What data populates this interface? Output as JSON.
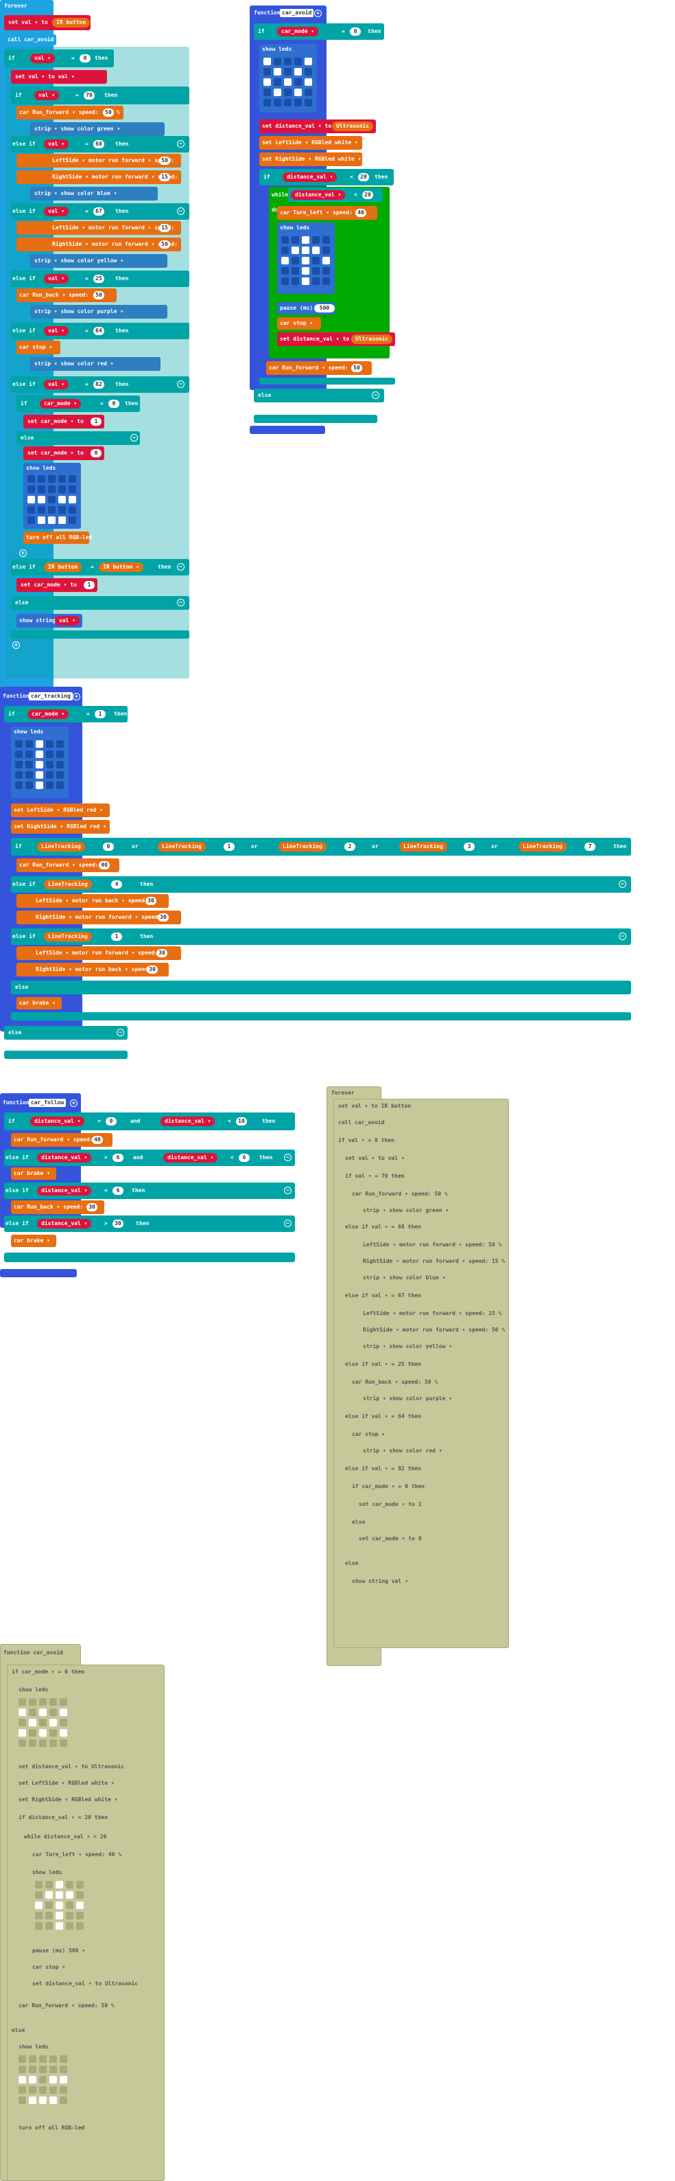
{
  "forever": {
    "label": "forever",
    "set_val": "set val ▾ to",
    "ir_button": "IR button",
    "call": "call car_avoid",
    "if": "if",
    "then": "then",
    "else_if": "else if",
    "else": "else",
    "val_label": "val ▾",
    "eq": "=",
    "zero": "0",
    "set_val2": "set val ▾ to val ▾",
    "n70": "70",
    "car_run": "car Run_forward ▾ speed:",
    "n50": "50",
    "pct": "%",
    "strip_green": "strip ▾ show color green ▾",
    "n68": "68",
    "left_fwd": "LeftSide ▾ motor run forward ▾ speed:",
    "n50b": "50",
    "right_fwd": "RightSide ▾ motor run forward ▾ speed:",
    "n15": "15",
    "strip_blue": "strip ▾ show color blue ▾",
    "n67": "67",
    "n15b": "15",
    "strip_yellow": "strip ▾ show color yellow ▾",
    "n25": "25",
    "run_back": "car Run_back ▾ speed:",
    "n50c": "50",
    "strip_purple": "strip ▾ show color purple ▾",
    "n64": "64",
    "car_stop": "car stop ▾",
    "strip_red": "strip ▾ show color red ▾",
    "n82": "82",
    "car_mode_eq": "car_mode ▾",
    "n1": "1",
    "set_car_mode": "set car_mode ▾ to",
    "n0": "0",
    "show_leds": "show leds",
    "turn_off": "turn off all RGB-led",
    "irb": "IR button ▾",
    "show_string": "show string"
  },
  "fn_avoid": {
    "label": "function",
    "name": "car_avoid",
    "if": "if",
    "car_mode": "car_mode ▾",
    "n0": "0",
    "then": "then",
    "show_leds": "show leds",
    "set_dist": "set distance_val ▾ to",
    "ultra": "Ultrasonic",
    "left_white": "set LeftSide ▾ RGBled white ▾",
    "right_white": "set RightSide ▾ RGBled white ▾",
    "distance_val": "distance_val ▾",
    "lt": "<",
    "n20": "20",
    "while": "while",
    "do": "do",
    "turn_left": "car Turn_left ▾ speed:",
    "n40": "40",
    "pause": "pause (ms)",
    "pause_val": "500 ▾",
    "stop": "car stop ▾",
    "run_fwd": "car Run_forward ▾ speed:",
    "else": "else"
  },
  "fn_tracking": {
    "label": "function",
    "name": "car_tracking",
    "car_mode": "car_mode ▾",
    "n1": "1",
    "left_red": "set LeftSide ▾ RGBled red ▾",
    "right_red": "set RightSide ▾ RGBled red ▾",
    "lt": "LineTracking",
    "or": "or",
    "n0": "0",
    "n1b": "1",
    "n2": "2",
    "n3": "3",
    "n7": "7",
    "run_fwd": "car Run_forward ▾ speed:",
    "n40": "40",
    "left_back": "LeftSide ▾ motor run back ▾ speed:",
    "n30": "30",
    "right_fwd": "RightSide ▾ motor run forward ▾ speed:",
    "left_fwd": "LeftSide ▾ motor run forward ▾ speed:",
    "right_back": "RightSide ▾ motor run back ▾ speed:",
    "brake": "car brake ▾"
  },
  "fn_follow": {
    "label": "function",
    "name": "car_follow",
    "distance_val": "distance_val ▾",
    "gt": ">",
    "and": "and",
    "n0": "0",
    "lt": "<",
    "n10": "10",
    "n20": "20",
    "n6": "6",
    "n30": "30",
    "run_fwd": "car Run_forward ▾ speed:",
    "n40": "40",
    "brake": "car brake ▾",
    "run_back": "car Run_back ▾ speed:",
    "n30b": "30"
  },
  "ghost_forever": {
    "label": "forever",
    "lines": [
      "set val ▾ to IR button",
      "call car_avoid",
      "if val ▾ = 0 then",
      "set val ▾ to val ▾",
      "if val ▾ = 70 then",
      "car Run_forward ▾ speed: 50 %",
      "strip ▾ show color green ▾",
      "else if val ▾ = 68 then",
      "LeftSide ▾ motor run forward ▾ speed: 50 %",
      "RightSide ▾ motor run forward ▾ speed: 15 %",
      "strip ▾ show color blue ▾",
      "else if val ▾ = 67 then",
      "LeftSide ▾ motor run forward ▾ speed: 15 %",
      "RightSide ▾ motor run forward ▾ speed: 50 %",
      "strip ▾ show color yellow ▾",
      "else if val ▾ = 25 then",
      "car Run_back ▾ speed: 50 %",
      "strip ▾ show color purple ▾",
      "else if val ▾ = 64 then",
      "car stop ▾",
      "strip ▾ show color red ▾",
      "else if val ▾ = 82 then",
      "if car_mode ▾ = 0 then",
      "set car_mode ▾ to 1",
      "else",
      "set car_mode ▾ to 0",
      "else",
      "show string val ▾"
    ]
  },
  "ghost_avoid": {
    "label": "function car_avoid",
    "lines": [
      "if car_mode ▾ = 0 then",
      "show leds",
      "set distance_val ▾ to Ultrasonic",
      "set LeftSide ▾ RGBled white ▾",
      "set RightSide ▾ RGBled white ▾",
      "if distance_val ▾ < 20 then",
      "while distance_val ▾ < 20",
      "car Turn_left ▾ speed: 40 %",
      "show leds",
      "pause (ms) 500 ▾",
      "car stop ▾",
      "set distance_val ▾ to Ultrasonic",
      "car Run_forward ▾ speed: 50 %",
      "else",
      "show leds",
      "turn off all RGB-led"
    ]
  },
  "colors": {
    "loop": "#1ea3e2",
    "function": "#3455db",
    "logic": "#00a4a6",
    "variable": "#dc143c",
    "car": "#e86e12",
    "led": "#2f6fd1",
    "ghost": "#c7c89a"
  }
}
